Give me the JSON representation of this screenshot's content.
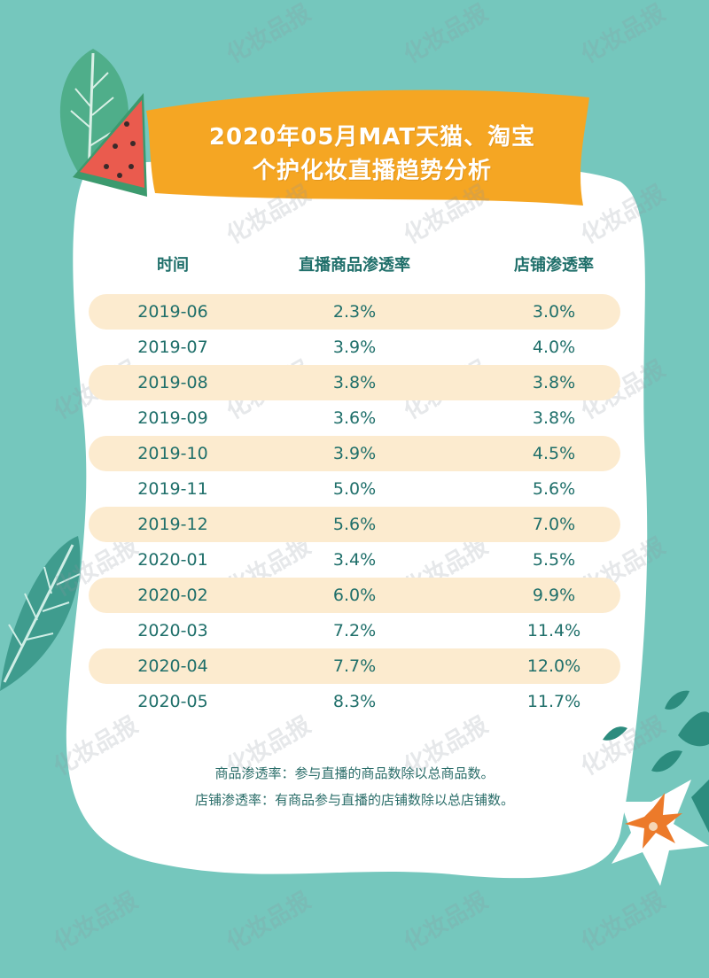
{
  "title": {
    "line1": "2020年05月MAT天猫、淘宝",
    "line2": "个护化妆直播趋势分析"
  },
  "watermark": "化妆品报",
  "colors": {
    "background": "#75c7bd",
    "card": "#ffffff",
    "banner": "#f5a623",
    "row_shade": "#fcebcf",
    "text": "#1f6f6a"
  },
  "chart_data": {
    "type": "table",
    "columns": [
      "时间",
      "直播商品渗透率",
      "店铺渗透率"
    ],
    "rows": [
      [
        "2019-06",
        "2.3%",
        "3.0%"
      ],
      [
        "2019-07",
        "3.9%",
        "4.0%"
      ],
      [
        "2019-08",
        "3.8%",
        "3.8%"
      ],
      [
        "2019-09",
        "3.6%",
        "3.8%"
      ],
      [
        "2019-10",
        "3.9%",
        "4.5%"
      ],
      [
        "2019-11",
        "5.0%",
        "5.6%"
      ],
      [
        "2019-12",
        "5.6%",
        "7.0%"
      ],
      [
        "2020-01",
        "3.4%",
        "5.5%"
      ],
      [
        "2020-02",
        "6.0%",
        "9.9%"
      ],
      [
        "2020-03",
        "7.2%",
        "11.4%"
      ],
      [
        "2020-04",
        "7.7%",
        "12.0%"
      ],
      [
        "2020-05",
        "8.3%",
        "11.7%"
      ]
    ]
  },
  "notes": [
    "商品渗透率：参与直播的商品数除以总商品数。",
    "店铺渗透率：有商品参与直播的店铺数除以总店铺数。"
  ]
}
